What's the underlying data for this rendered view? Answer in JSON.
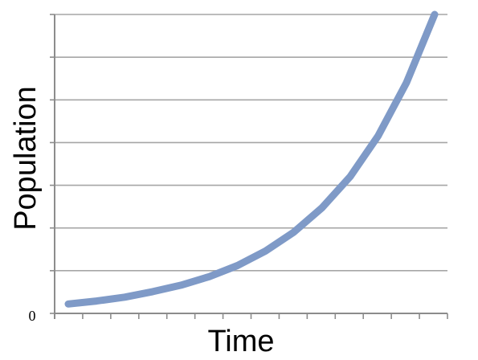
{
  "chart_data": {
    "type": "line",
    "xlabel": "Time",
    "ylabel": "Population",
    "y_tick_labels": [
      "0"
    ],
    "ylim": [
      0,
      7
    ],
    "x_tick_count": 15,
    "y_gridlines": 7,
    "grid": true,
    "series": [
      {
        "color": "#7f9ac7",
        "x": [
          0,
          1,
          2,
          3,
          4,
          5,
          6,
          7,
          8,
          9,
          10,
          11,
          12,
          13
        ],
        "y": [
          0.22,
          0.29,
          0.38,
          0.51,
          0.66,
          0.86,
          1.12,
          1.46,
          1.9,
          2.47,
          3.2,
          4.16,
          5.4,
          7.0
        ]
      }
    ]
  }
}
